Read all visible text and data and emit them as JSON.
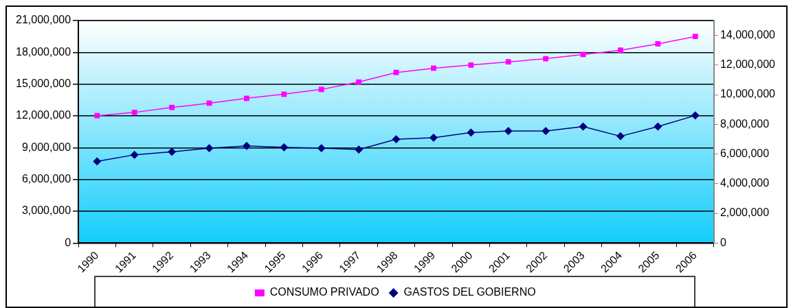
{
  "chart_data": {
    "type": "line",
    "categories": [
      "1990",
      "1991",
      "1992",
      "1993",
      "1994",
      "1995",
      "1996",
      "1997",
      "1998",
      "1999",
      "2000",
      "2001",
      "2002",
      "2003",
      "2004",
      "2005",
      "2006"
    ],
    "series": [
      {
        "name": "CONSUMO PRIVADO",
        "color": "#ff00ff",
        "marker": "square",
        "values": [
          12020000,
          12330000,
          12800000,
          13200000,
          13660000,
          14050000,
          14500000,
          15200000,
          16100000,
          16500000,
          16800000,
          17100000,
          17400000,
          17800000,
          18200000,
          18800000,
          19500000
        ]
      },
      {
        "name": "GASTOS DEL GOBIERNO",
        "color": "#000080",
        "marker": "diamond",
        "axis": "y2",
        "values": [
          5500000,
          5950000,
          6150000,
          6400000,
          6550000,
          6450000,
          6400000,
          6300000,
          7000000,
          7100000,
          7450000,
          7550000,
          7550000,
          7850000,
          7200000,
          7850000,
          8600000
        ]
      }
    ],
    "ylim": [
      0,
      21000000
    ],
    "yticks": [
      0,
      {
        "value": 3000000,
        "label": "3,000,000"
      },
      {
        "value": 6000000,
        "label": "6,000,000"
      },
      {
        "value": 9000000,
        "label": "9,000,000"
      },
      {
        "value": 12000000,
        "label": "12,000,000"
      },
      {
        "value": 15000000,
        "label": "15,000,000"
      },
      {
        "value": 18000000,
        "label": "18,000,000"
      },
      {
        "value": 21000000,
        "label": "21,000,000"
      }
    ],
    "y2lim": [
      0,
      15000000
    ],
    "y2ticks": [
      0,
      {
        "value": 2000000,
        "label": "2,000,000"
      },
      {
        "value": 4000000,
        "label": "4,000,000"
      },
      {
        "value": 6000000,
        "label": "6,000,000"
      },
      {
        "value": 8000000,
        "label": "8,000,000"
      },
      {
        "value": 10000000,
        "label": "10,000,000"
      },
      {
        "value": 12000000,
        "label": "12,000,000"
      },
      {
        "value": 14000000,
        "label": "14,000,000"
      }
    ],
    "grid": "y",
    "legend": "bottom",
    "line_style": "solid"
  }
}
